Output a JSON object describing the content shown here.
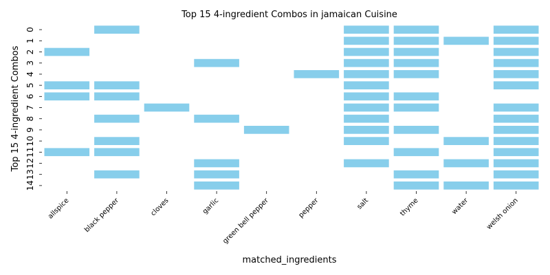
{
  "chart_data": {
    "type": "heatmap",
    "title": "Top 15 4-ingredient Combos in jamaican Cuisine",
    "xlabel": "matched_ingredients",
    "ylabel": "Top 15 4-ingredient Combos",
    "categories": [
      "allspice",
      "black pepper",
      "cloves",
      "garlic",
      "green bell pepper",
      "pepper",
      "salt",
      "thyme",
      "water",
      "welsh onion"
    ],
    "rows": [
      "0",
      "1",
      "2",
      "3",
      "4",
      "5",
      "6",
      "7",
      "8",
      "9",
      "10",
      "11",
      "12",
      "13",
      "14"
    ],
    "color": "#87ceeb",
    "grid": false,
    "matrix": [
      [
        0,
        1,
        0,
        0,
        0,
        0,
        1,
        1,
        0,
        1
      ],
      [
        0,
        0,
        0,
        0,
        0,
        0,
        1,
        1,
        1,
        1
      ],
      [
        1,
        0,
        0,
        0,
        0,
        0,
        1,
        1,
        0,
        1
      ],
      [
        0,
        0,
        0,
        1,
        0,
        0,
        1,
        1,
        0,
        1
      ],
      [
        0,
        0,
        0,
        0,
        0,
        1,
        1,
        1,
        0,
        1
      ],
      [
        1,
        1,
        0,
        0,
        0,
        0,
        1,
        0,
        0,
        1
      ],
      [
        1,
        1,
        0,
        0,
        0,
        0,
        1,
        1,
        0,
        0
      ],
      [
        0,
        0,
        1,
        0,
        0,
        0,
        1,
        1,
        0,
        1
      ],
      [
        0,
        1,
        0,
        1,
        0,
        0,
        1,
        0,
        0,
        1
      ],
      [
        0,
        0,
        0,
        0,
        1,
        0,
        1,
        1,
        0,
        1
      ],
      [
        0,
        1,
        0,
        0,
        0,
        0,
        1,
        0,
        1,
        1
      ],
      [
        1,
        1,
        0,
        0,
        0,
        0,
        0,
        1,
        0,
        1
      ],
      [
        0,
        0,
        0,
        1,
        0,
        0,
        1,
        0,
        1,
        1
      ],
      [
        0,
        1,
        0,
        1,
        0,
        0,
        0,
        1,
        0,
        1
      ],
      [
        0,
        0,
        0,
        1,
        0,
        0,
        0,
        1,
        1,
        1
      ]
    ]
  }
}
